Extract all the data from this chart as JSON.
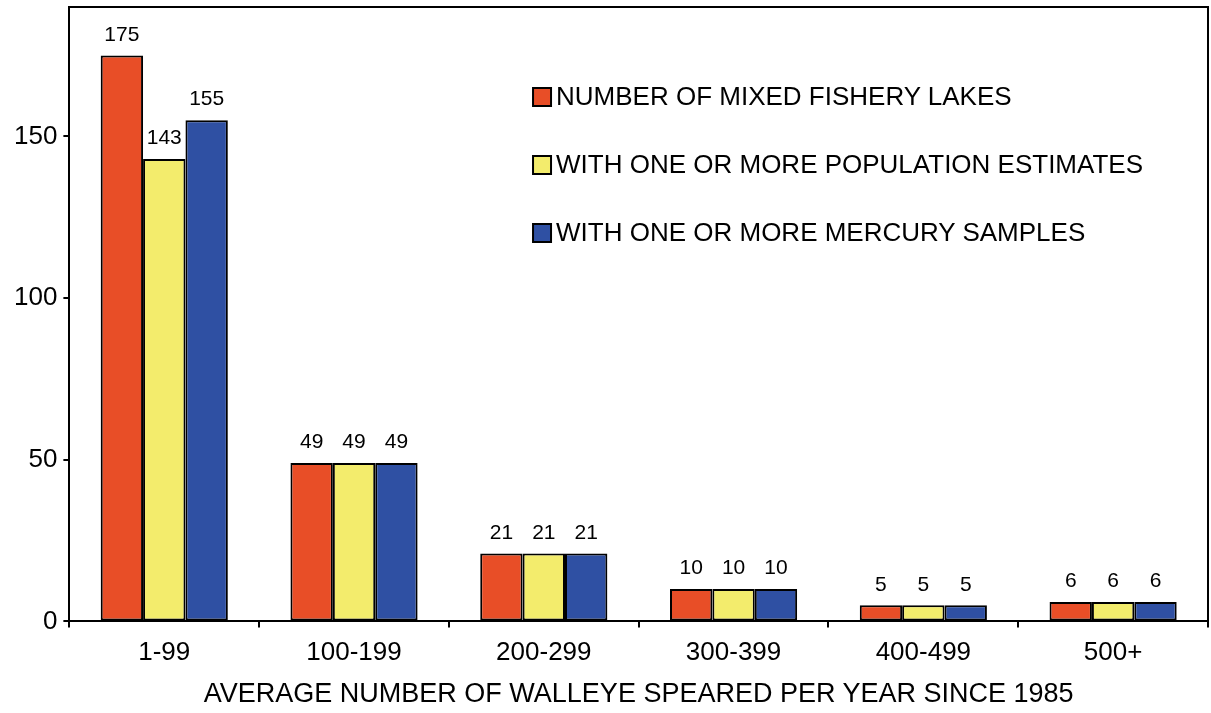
{
  "chart_data": {
    "type": "bar",
    "xlabel": "AVERAGE NUMBER OF WALLEYE SPEARED PER YEAR SINCE 1985",
    "categories": [
      "1-99",
      "100-199",
      "200-299",
      "300-399",
      "400-499",
      "500+"
    ],
    "series": [
      {
        "name": "NUMBER OF MIXED FISHERY LAKES",
        "color": "#e84e27",
        "values": [
          175,
          49,
          21,
          10,
          5,
          6
        ]
      },
      {
        "name": "WITH ONE OR MORE POPULATION ESTIMATES",
        "color": "#f3ec6c",
        "values": [
          143,
          49,
          21,
          10,
          5,
          6
        ]
      },
      {
        "name": "WITH ONE OR MORE MERCURY SAMPLES",
        "color": "#2f50a3",
        "values": [
          155,
          49,
          21,
          10,
          5,
          6
        ]
      }
    ],
    "ylim": [
      0,
      190
    ],
    "yticks": [
      0,
      50,
      100,
      150
    ],
    "grid": false,
    "legend": "top right",
    "data_labels": true
  }
}
